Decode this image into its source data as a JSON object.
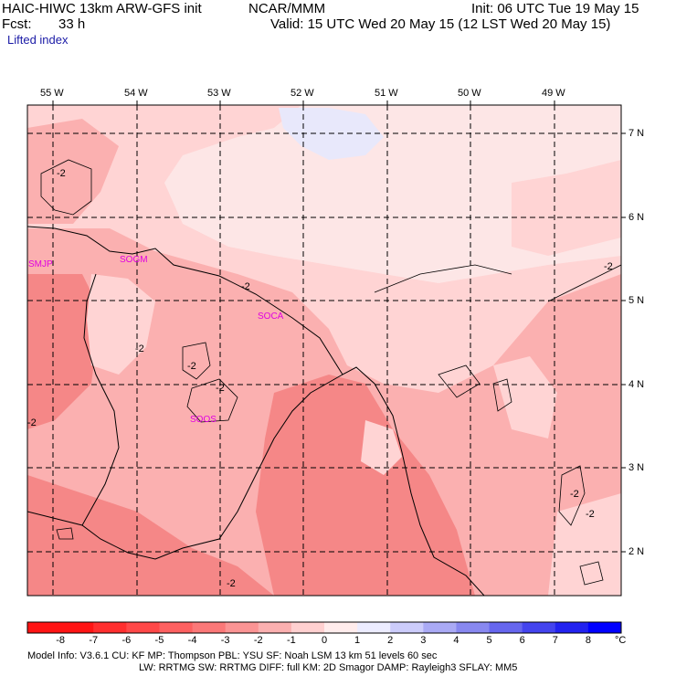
{
  "header": {
    "title_left": "HAIC-HIWC 13km ARW-GFS init",
    "org": "NCAR/MMM",
    "init": "Init: 06 UTC Tue 19 May 15",
    "fcst_label": "Fcst:",
    "fcst_value": "33 h",
    "valid": "Valid: 15 UTC Wed 20 May 15 (12 LST Wed 20 May 15)",
    "field": "Lifted index"
  },
  "map": {
    "lon_labels": [
      "55 W",
      "54 W",
      "53 W",
      "52 W",
      "51 W",
      "50 W",
      "49 W"
    ],
    "lat_labels": [
      "7 N",
      "6 N",
      "5 N",
      "4 N",
      "3 N",
      "2 N"
    ],
    "contour_labels": [
      "-2",
      "-2",
      "-2",
      "-2",
      "-2",
      "-2",
      "-2",
      "-2",
      "-2",
      "-2"
    ],
    "stations": [
      "SMJP",
      "SOCA",
      "SOOS",
      "SOGM"
    ],
    "colors": {
      "ocean_light": "#fde6e6",
      "pale": "#ffd4d4",
      "mid": "#fbb0b0",
      "strong": "#f58787",
      "bluish": "#e8e8fb",
      "station": "#e000e0"
    }
  },
  "colorbar": {
    "labels": [
      "-8",
      "-7",
      "-6",
      "-5",
      "-4",
      "-3",
      "-2",
      "-1",
      "0",
      "1",
      "2",
      "3",
      "4",
      "5",
      "6",
      "7",
      "8"
    ],
    "unit": "°C",
    "colors": [
      "#ff1414",
      "#ff2e2e",
      "#ff4848",
      "#fd6060",
      "#fb7878",
      "#fb9494",
      "#fbb0b0",
      "#ffd0d0",
      "#ffecec",
      "#ececff",
      "#ccccfb",
      "#aaaaf5",
      "#8888f0",
      "#6666ee",
      "#4444ee",
      "#2222f0",
      "#0000ff"
    ]
  },
  "footer": {
    "line1": "Model Info: V3.6.1     CU: KF       MP: Thompson     PBL: YSU       SF: Noah LSM       13 km    51 levels   60 sec",
    "line2": "LW: RRTMG    SW: RRTMG  DIFF: full    KM: 2D Smagor DAMP: Rayleigh3  SFLAY: MM5"
  }
}
